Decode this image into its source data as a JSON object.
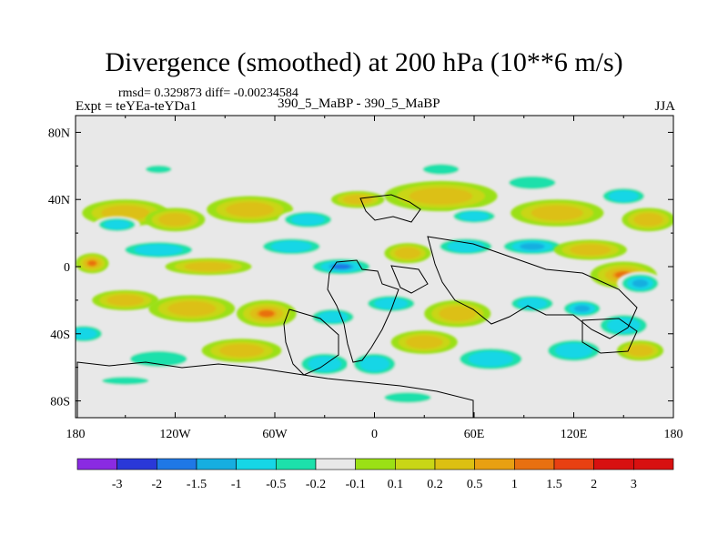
{
  "header": {
    "title": "Divergence (smoothed) at 200 hPa (10**6 m/s)",
    "stats": "rmsd= 0.329873 diff= -0.00234584",
    "experiment": "Expt = teYEa-teYDa1",
    "case": "390_5_MaBP - 390_5_MaBP",
    "season": "JJA"
  },
  "chart_data": {
    "type": "heatmap",
    "title": "Divergence (smoothed) at 200 hPa (10**6 m/s)",
    "xlabel": "",
    "ylabel": "",
    "x_range": [
      -180,
      180
    ],
    "y_range": [
      -90,
      90
    ],
    "x_ticks": [
      {
        "value": -180,
        "label": "180"
      },
      {
        "value": -120,
        "label": "120W"
      },
      {
        "value": -60,
        "label": "60W"
      },
      {
        "value": 0,
        "label": "0"
      },
      {
        "value": 60,
        "label": "60E"
      },
      {
        "value": 120,
        "label": "120E"
      },
      {
        "value": 180,
        "label": "180"
      }
    ],
    "y_ticks": [
      {
        "value": 80,
        "label": "80N"
      },
      {
        "value": 40,
        "label": "40N"
      },
      {
        "value": 0,
        "label": "0"
      },
      {
        "value": -40,
        "label": "40S"
      },
      {
        "value": -80,
        "label": "80S"
      }
    ],
    "colorbar": {
      "labels": [
        "-3",
        "-2",
        "-1.5",
        "-1",
        "-0.5",
        "-0.2",
        "-0.1",
        "0.1",
        "0.2",
        "0.5",
        "1",
        "1.5",
        "2",
        "3"
      ],
      "colors": [
        "#8a2be2",
        "#2a38d8",
        "#1f78e6",
        "#16aee0",
        "#16d6e6",
        "#1de0ab",
        "#e8e8e8",
        "#9be015",
        "#c9d616",
        "#dcc012",
        "#e8a012",
        "#e87010",
        "#e84012",
        "#d81010"
      ]
    },
    "blobs": [
      {
        "lon": -150,
        "lat": 32,
        "rx": 26,
        "ry": 8,
        "v": 0.5
      },
      {
        "lon": -155,
        "lat": 25,
        "rx": 14,
        "ry": 5,
        "v": -0.5
      },
      {
        "lon": -120,
        "lat": 28,
        "rx": 18,
        "ry": 7,
        "v": 0.5
      },
      {
        "lon": -75,
        "lat": 34,
        "rx": 26,
        "ry": 8,
        "v": 0.5
      },
      {
        "lon": -40,
        "lat": 28,
        "rx": 18,
        "ry": 6,
        "v": -0.5
      },
      {
        "lon": -10,
        "lat": 40,
        "rx": 16,
        "ry": 5,
        "v": 0.5
      },
      {
        "lon": 40,
        "lat": 42,
        "rx": 34,
        "ry": 9,
        "v": 0.5
      },
      {
        "lon": 60,
        "lat": 30,
        "rx": 16,
        "ry": 5,
        "v": -0.5
      },
      {
        "lon": 110,
        "lat": 32,
        "rx": 28,
        "ry": 8,
        "v": 0.5
      },
      {
        "lon": 150,
        "lat": 42,
        "rx": 16,
        "ry": 6,
        "v": -0.5
      },
      {
        "lon": 165,
        "lat": 28,
        "rx": 16,
        "ry": 7,
        "v": 0.5
      },
      {
        "lon": -130,
        "lat": 58,
        "rx": 10,
        "ry": 3,
        "v": -0.2
      },
      {
        "lon": 40,
        "lat": 58,
        "rx": 14,
        "ry": 4,
        "v": -0.2
      },
      {
        "lon": 95,
        "lat": 50,
        "rx": 18,
        "ry": 5,
        "v": -0.2
      },
      {
        "lon": -170,
        "lat": 2,
        "rx": 10,
        "ry": 6,
        "v": 1.5
      },
      {
        "lon": -130,
        "lat": 10,
        "rx": 26,
        "ry": 6,
        "v": -0.5
      },
      {
        "lon": -100,
        "lat": 0,
        "rx": 26,
        "ry": 5,
        "v": 0.5
      },
      {
        "lon": -50,
        "lat": 12,
        "rx": 22,
        "ry": 6,
        "v": -0.5
      },
      {
        "lon": -20,
        "lat": 0,
        "rx": 22,
        "ry": 6,
        "v": -1.5
      },
      {
        "lon": 20,
        "lat": 8,
        "rx": 14,
        "ry": 6,
        "v": 0.5
      },
      {
        "lon": 55,
        "lat": 12,
        "rx": 20,
        "ry": 6,
        "v": -0.5
      },
      {
        "lon": 95,
        "lat": 12,
        "rx": 22,
        "ry": 6,
        "v": -1
      },
      {
        "lon": 130,
        "lat": 10,
        "rx": 22,
        "ry": 6,
        "v": 0.5
      },
      {
        "lon": 150,
        "lat": -5,
        "rx": 20,
        "ry": 8,
        "v": 1.5
      },
      {
        "lon": 160,
        "lat": -10,
        "rx": 14,
        "ry": 7,
        "v": -1
      },
      {
        "lon": -150,
        "lat": -20,
        "rx": 20,
        "ry": 6,
        "v": 0.5
      },
      {
        "lon": -110,
        "lat": -25,
        "rx": 26,
        "ry": 8,
        "v": 0.5
      },
      {
        "lon": -65,
        "lat": -28,
        "rx": 18,
        "ry": 8,
        "v": 1.5
      },
      {
        "lon": -25,
        "lat": -30,
        "rx": 16,
        "ry": 6,
        "v": -0.5
      },
      {
        "lon": 10,
        "lat": -22,
        "rx": 18,
        "ry": 6,
        "v": -0.5
      },
      {
        "lon": 50,
        "lat": -28,
        "rx": 20,
        "ry": 8,
        "v": 0.5
      },
      {
        "lon": 95,
        "lat": -22,
        "rx": 16,
        "ry": 6,
        "v": -0.5
      },
      {
        "lon": 125,
        "lat": -25,
        "rx": 14,
        "ry": 6,
        "v": -1
      },
      {
        "lon": 150,
        "lat": -35,
        "rx": 18,
        "ry": 8,
        "v": -0.5
      },
      {
        "lon": -175,
        "lat": -40,
        "rx": 14,
        "ry": 6,
        "v": -0.5
      },
      {
        "lon": -130,
        "lat": -55,
        "rx": 22,
        "ry": 6,
        "v": -0.2
      },
      {
        "lon": -80,
        "lat": -50,
        "rx": 24,
        "ry": 7,
        "v": 0.5
      },
      {
        "lon": -30,
        "lat": -58,
        "rx": 18,
        "ry": 8,
        "v": -0.5
      },
      {
        "lon": 0,
        "lat": -58,
        "rx": 16,
        "ry": 8,
        "v": -0.5
      },
      {
        "lon": 30,
        "lat": -45,
        "rx": 20,
        "ry": 7,
        "v": 0.5
      },
      {
        "lon": 70,
        "lat": -55,
        "rx": 24,
        "ry": 8,
        "v": -0.5
      },
      {
        "lon": 120,
        "lat": -50,
        "rx": 20,
        "ry": 8,
        "v": -0.5
      },
      {
        "lon": 160,
        "lat": -50,
        "rx": 14,
        "ry": 6,
        "v": 0.5
      },
      {
        "lon": -150,
        "lat": -68,
        "rx": 18,
        "ry": 3,
        "v": -0.2
      },
      {
        "lon": 20,
        "lat": -78,
        "rx": 18,
        "ry": 4,
        "v": -0.2
      }
    ]
  }
}
